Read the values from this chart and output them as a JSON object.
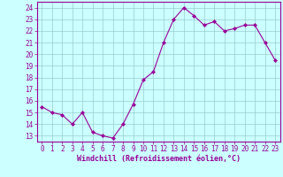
{
  "x": [
    0,
    1,
    2,
    3,
    4,
    5,
    6,
    7,
    8,
    9,
    10,
    11,
    12,
    13,
    14,
    15,
    16,
    17,
    18,
    19,
    20,
    21,
    22,
    23
  ],
  "y": [
    15.5,
    15.0,
    14.8,
    14.0,
    15.0,
    13.3,
    13.0,
    12.8,
    14.0,
    15.7,
    17.8,
    18.5,
    21.0,
    23.0,
    24.0,
    23.3,
    22.5,
    22.8,
    22.0,
    22.2,
    22.5,
    22.5,
    21.0,
    19.5
  ],
  "line_color": "#990099",
  "marker": "D",
  "marker_size": 2,
  "bg_color": "#ccffff",
  "grid_color": "#99cccc",
  "xlabel": "Windchill (Refroidissement éolien,°C)",
  "xlabel_color": "#990099",
  "tick_color": "#990099",
  "ylim": [
    12.5,
    24.5
  ],
  "yticks": [
    13,
    14,
    15,
    16,
    17,
    18,
    19,
    20,
    21,
    22,
    23,
    24
  ],
  "xlim": [
    -0.5,
    23.5
  ],
  "xticks": [
    0,
    1,
    2,
    3,
    4,
    5,
    6,
    7,
    8,
    9,
    10,
    11,
    12,
    13,
    14,
    15,
    16,
    17,
    18,
    19,
    20,
    21,
    22,
    23
  ],
  "tick_fontsize": 5.5,
  "xlabel_fontsize": 6.0
}
